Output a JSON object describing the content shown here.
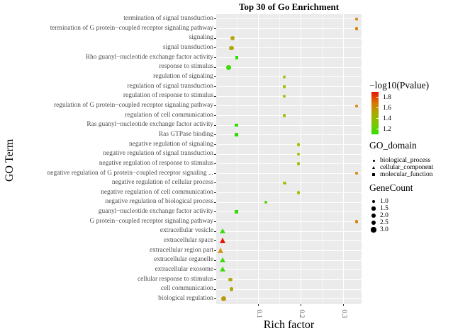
{
  "title": "Top 30 of Go Enrichment",
  "axes": {
    "x_label": "Rich factor",
    "y_label": "GO Term",
    "x_tick_labels": [
      "0.1",
      "0.2",
      "0.3"
    ],
    "x_tick_values": [
      0.1,
      0.2,
      0.3
    ],
    "x_minor_tick_values": [
      0.05,
      0.15,
      0.25
    ],
    "x_range": [
      0,
      0.342
    ]
  },
  "legend": {
    "pvalue": {
      "title": "−log10(Pvalue)",
      "tick_labels": [
        "1.8",
        "1.6",
        "1.4",
        "1.2"
      ],
      "tick_values": [
        1.8,
        1.6,
        1.4,
        1.2
      ],
      "range": [
        1.1,
        1.9
      ],
      "gradient_colors": [
        "#E51400",
        "#D97400",
        "#ABA800",
        "#7CC600",
        "#35E000"
      ]
    },
    "domain": {
      "title": "GO_domain",
      "items": [
        {
          "label": "biological_process",
          "shape": "circle"
        },
        {
          "label": "cellular_component",
          "shape": "triangle"
        },
        {
          "label": "molecular_function",
          "shape": "square"
        }
      ]
    },
    "gene_count": {
      "title": "GeneCount",
      "items": [
        {
          "label": "1.0",
          "value": 1.0
        },
        {
          "label": "1.5",
          "value": 1.5
        },
        {
          "label": "2.0",
          "value": 2.0
        },
        {
          "label": "2.5",
          "value": 2.5
        },
        {
          "label": "3.0",
          "value": 3.0
        }
      ]
    }
  },
  "chart_data": {
    "type": "scatter",
    "title": "Top 30 of Go Enrichment",
    "xlabel": "Rich factor",
    "ylabel": "GO Term",
    "xlim": [
      0,
      0.342
    ],
    "x_ticks": [
      0.1,
      0.2,
      0.3
    ],
    "grid": true,
    "legend_position": "right",
    "panel_background": "#EBEBEB",
    "points": [
      {
        "term": "termination of signal transduction",
        "go_domain": "biological_process",
        "rich_factor": 0.33,
        "log10_pvalue": 1.63,
        "gene_count": 1.0,
        "color": "#DA8313"
      },
      {
        "term": "termination of G protein−coupled receptor signaling pathway",
        "go_domain": "biological_process",
        "rich_factor": 0.33,
        "log10_pvalue": 1.63,
        "gene_count": 1.0,
        "color": "#DA8313"
      },
      {
        "term": "signaling",
        "go_domain": "biological_process",
        "rich_factor": 0.038,
        "log10_pvalue": 1.47,
        "gene_count": 2.5,
        "color": "#B3A80E"
      },
      {
        "term": "signal transduction",
        "go_domain": "biological_process",
        "rich_factor": 0.036,
        "log10_pvalue": 1.47,
        "gene_count": 2.5,
        "color": "#B3A80E"
      },
      {
        "term": "Rho guanyl−nucleotide exchange factor activity",
        "go_domain": "molecular_function",
        "rich_factor": 0.048,
        "log10_pvalue": 1.2,
        "gene_count": 1.0,
        "color": "#2FDE00"
      },
      {
        "term": "response to stimulus",
        "go_domain": "biological_process",
        "rich_factor": 0.029,
        "log10_pvalue": 1.2,
        "gene_count": 3.0,
        "color": "#3EDC00"
      },
      {
        "term": "regulation of signaling",
        "go_domain": "biological_process",
        "rich_factor": 0.16,
        "log10_pvalue": 1.38,
        "gene_count": 1.0,
        "color": "#9AC40A"
      },
      {
        "term": "regulation of signal transduction",
        "go_domain": "biological_process",
        "rich_factor": 0.16,
        "log10_pvalue": 1.38,
        "gene_count": 1.0,
        "color": "#9AC40A"
      },
      {
        "term": "regulation of response to stimulus",
        "go_domain": "biological_process",
        "rich_factor": 0.16,
        "log10_pvalue": 1.38,
        "gene_count": 1.0,
        "color": "#9AC40A"
      },
      {
        "term": "regulation of G protein−coupled receptor signaling pathway",
        "go_domain": "biological_process",
        "rich_factor": 0.33,
        "log10_pvalue": 1.63,
        "gene_count": 1.0,
        "color": "#DA8313"
      },
      {
        "term": "regulation of cell communication",
        "go_domain": "biological_process",
        "rich_factor": 0.16,
        "log10_pvalue": 1.38,
        "gene_count": 1.0,
        "color": "#9AC40A"
      },
      {
        "term": "Ras guanyl−nucleotide exchange factor activity",
        "go_domain": "molecular_function",
        "rich_factor": 0.048,
        "log10_pvalue": 1.2,
        "gene_count": 1.5,
        "color": "#2FDE00"
      },
      {
        "term": "Ras GTPase binding",
        "go_domain": "molecular_function",
        "rich_factor": 0.048,
        "log10_pvalue": 1.2,
        "gene_count": 1.5,
        "color": "#2FDE00"
      },
      {
        "term": "negative regulation of signaling",
        "go_domain": "biological_process",
        "rich_factor": 0.194,
        "log10_pvalue": 1.4,
        "gene_count": 1.0,
        "color": "#A6C00B"
      },
      {
        "term": "negative regulation of signal transduction",
        "go_domain": "biological_process",
        "rich_factor": 0.194,
        "log10_pvalue": 1.4,
        "gene_count": 1.0,
        "color": "#A6C00B"
      },
      {
        "term": "negative regulation of response to stimulus",
        "go_domain": "biological_process",
        "rich_factor": 0.194,
        "log10_pvalue": 1.4,
        "gene_count": 1.0,
        "color": "#A6C00B"
      },
      {
        "term": "negative regulation of G protein−coupled receptor signaling  ...",
        "go_domain": "biological_process",
        "rich_factor": 0.33,
        "log10_pvalue": 1.63,
        "gene_count": 1.0,
        "color": "#DA8313"
      },
      {
        "term": "negative regulation of cellular process",
        "go_domain": "biological_process",
        "rich_factor": 0.161,
        "log10_pvalue": 1.38,
        "gene_count": 1.0,
        "color": "#9AC40A"
      },
      {
        "term": "negative regulation of cell communication",
        "go_domain": "biological_process",
        "rich_factor": 0.194,
        "log10_pvalue": 1.4,
        "gene_count": 1.0,
        "color": "#A6C00B"
      },
      {
        "term": "negative regulation of biological process",
        "go_domain": "biological_process",
        "rich_factor": 0.117,
        "log10_pvalue": 1.27,
        "gene_count": 1.0,
        "color": "#55D608"
      },
      {
        "term": "guanyl−nucleotide exchange factor activity",
        "go_domain": "molecular_function",
        "rich_factor": 0.048,
        "log10_pvalue": 1.2,
        "gene_count": 1.5,
        "color": "#2FDE00"
      },
      {
        "term": "G protein−coupled receptor signaling pathway",
        "go_domain": "biological_process",
        "rich_factor": 0.33,
        "log10_pvalue": 1.63,
        "gene_count": 1.0,
        "color": "#DA8313"
      },
      {
        "term": "extracellular vesicle",
        "go_domain": "cellular_component",
        "rich_factor": 0.015,
        "log10_pvalue": 1.2,
        "gene_count": 2.5,
        "color": "#3BDC07"
      },
      {
        "term": "extracellular space",
        "go_domain": "cellular_component",
        "rich_factor": 0.016,
        "log10_pvalue": 1.83,
        "gene_count": 3.0,
        "color": "#E8130A"
      },
      {
        "term": "extracellular region part",
        "go_domain": "cellular_component",
        "rich_factor": 0.012,
        "log10_pvalue": 1.57,
        "gene_count": 3.0,
        "color": "#D49A26"
      },
      {
        "term": "extracellular organelle",
        "go_domain": "cellular_component",
        "rich_factor": 0.015,
        "log10_pvalue": 1.2,
        "gene_count": 2.5,
        "color": "#3BDC07"
      },
      {
        "term": "extracellular exosome",
        "go_domain": "cellular_component",
        "rich_factor": 0.015,
        "log10_pvalue": 1.2,
        "gene_count": 2.5,
        "color": "#3BDC07"
      },
      {
        "term": "cellular response to stimulus",
        "go_domain": "biological_process",
        "rich_factor": 0.033,
        "log10_pvalue": 1.47,
        "gene_count": 2.0,
        "color": "#B3A50A"
      },
      {
        "term": "cell communication",
        "go_domain": "biological_process",
        "rich_factor": 0.036,
        "log10_pvalue": 1.47,
        "gene_count": 2.0,
        "color": "#B3A50A"
      },
      {
        "term": "biological regulation",
        "go_domain": "biological_process",
        "rich_factor": 0.018,
        "log10_pvalue": 1.5,
        "gene_count": 3.0,
        "color": "#B89B0E"
      }
    ]
  }
}
